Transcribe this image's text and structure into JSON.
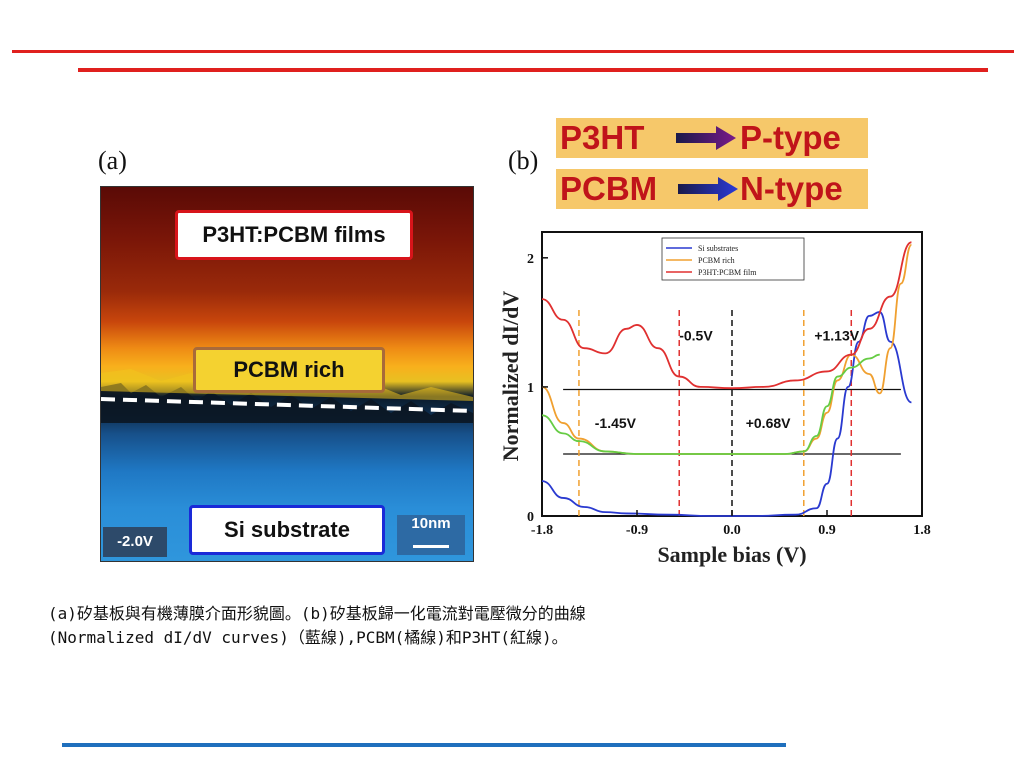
{
  "slide": {
    "colors": {
      "top_rule": "#e0201e",
      "bottom_rule": "#1f6fbd"
    }
  },
  "panel_a": {
    "letter": "(a)",
    "labels": {
      "films": "P3HT:PCBM films",
      "pcbm_rich": "PCBM rich",
      "si_substrate": "Si substrate",
      "bias": "-2.0V",
      "scale": "10nm"
    }
  },
  "panel_b": {
    "letter": "(b)",
    "type_rows": [
      {
        "material": "P3HT",
        "arrow": "arrow-right-icon",
        "type": "P-type"
      },
      {
        "material": "PCBM",
        "arrow": "arrow-right-icon",
        "type": "N-type"
      }
    ]
  },
  "chart_data": {
    "type": "line",
    "xlabel": "Sample bias (V)",
    "ylabel": "Normalized dI/dV",
    "xlim": [
      -1.8,
      1.8
    ],
    "ylim": [
      0,
      2.2
    ],
    "xticks": [
      "-1.8",
      "-0.9",
      "0.0",
      "0.9",
      "1.8"
    ],
    "yticks": [
      "0",
      "1",
      "2"
    ],
    "legend_position": "top-left",
    "series": [
      {
        "name": "Si substrates",
        "color": "#2a3ad0",
        "x": [
          -1.8,
          -1.6,
          -1.4,
          -1.2,
          -1.0,
          -0.6,
          -0.2,
          0.2,
          0.6,
          0.8,
          0.9,
          1.0,
          1.1,
          1.2,
          1.3,
          1.4,
          1.5,
          1.7
        ],
        "y": [
          0.27,
          0.14,
          0.07,
          0.03,
          0.02,
          0.01,
          0.0,
          0.0,
          0.01,
          0.06,
          0.25,
          0.6,
          1.0,
          1.35,
          1.55,
          1.58,
          1.35,
          0.88
        ]
      },
      {
        "name": "PCBM rich",
        "color": "#f0a030",
        "x": [
          -1.8,
          -1.6,
          -1.45,
          -1.2,
          -0.9,
          -0.5,
          0.0,
          0.5,
          0.68,
          0.8,
          0.9,
          1.0,
          1.13,
          1.3,
          1.4,
          1.5,
          1.6,
          1.7
        ],
        "y": [
          1.0,
          0.72,
          0.6,
          0.5,
          0.48,
          0.48,
          0.48,
          0.48,
          0.5,
          0.6,
          0.8,
          1.05,
          1.25,
          1.1,
          0.95,
          1.3,
          1.8,
          2.1
        ]
      },
      {
        "name": "P3HT:PCBM film",
        "color": "#e03030",
        "x": [
          -1.8,
          -1.6,
          -1.4,
          -1.2,
          -1.0,
          -0.9,
          -0.7,
          -0.5,
          -0.3,
          0.0,
          0.3,
          0.6,
          0.9,
          1.13,
          1.3,
          1.5,
          1.7
        ],
        "y": [
          1.68,
          1.52,
          1.3,
          1.26,
          1.45,
          1.48,
          1.3,
          1.08,
          1.0,
          0.99,
          1.0,
          1.05,
          1.12,
          1.25,
          1.45,
          1.7,
          2.12
        ]
      },
      {
        "name": "",
        "color": "#66cc44",
        "x": [
          -1.8,
          -1.6,
          -1.45,
          -1.2,
          -0.9,
          -0.5,
          0.0,
          0.5,
          0.68,
          0.8,
          0.9,
          1.0,
          1.13,
          1.3,
          1.4
        ],
        "y": [
          0.78,
          0.64,
          0.58,
          0.5,
          0.48,
          0.48,
          0.48,
          0.48,
          0.5,
          0.62,
          0.85,
          1.08,
          1.15,
          1.22,
          1.25
        ]
      }
    ],
    "reference_lines": [
      {
        "y": 0.98,
        "x_from": -1.6,
        "x_to": 1.6,
        "color": "#111111"
      },
      {
        "y": 0.48,
        "x_from": -1.6,
        "x_to": 1.6,
        "color": "#111111"
      }
    ],
    "vertical_lines": [
      {
        "x": -1.45,
        "color": "#f0a030"
      },
      {
        "x": -0.5,
        "color": "#e03030"
      },
      {
        "x": 0.0,
        "color": "#111111"
      },
      {
        "x": 0.68,
        "color": "#f0a030"
      },
      {
        "x": 1.13,
        "color": "#e03030"
      }
    ],
    "annotations": [
      {
        "text": "-0.5V",
        "x": -0.5,
        "y": 1.36
      },
      {
        "text": "+1.13V",
        "x": 0.78,
        "y": 1.36
      },
      {
        "text": "-1.45V",
        "x": -1.3,
        "y": 0.68
      },
      {
        "text": "+0.68V",
        "x": 0.13,
        "y": 0.68
      }
    ]
  },
  "caption": {
    "line1": "(a)矽基板與有機薄膜介面形貌圖。(b)矽基板歸一化電流對電壓微分的曲線",
    "line2": "(Normalized dI/dV curves)（藍線),PCBM(橘線)和P3HT(紅線)。"
  }
}
